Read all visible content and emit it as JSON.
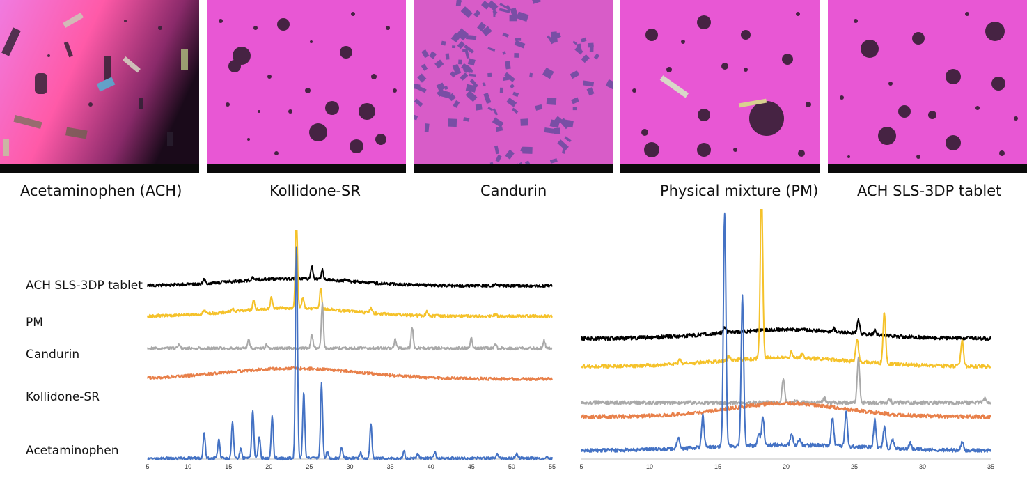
{
  "micrographs": [
    {
      "name": "Acetaminophen (ACH)"
    },
    {
      "name": "Kollidone-SR"
    },
    {
      "name": "Candurin"
    },
    {
      "name": "Physical mixture (PM)"
    },
    {
      "name": "ACH SLS-3DP tablet"
    }
  ],
  "colors": {
    "ach_tablet": "#000000",
    "pm": "#F5C22A",
    "candurin": "#A9A9A9",
    "kollidone": "#E8804A",
    "acetaminophen": "#4472C4",
    "micro_pink": "#E64FD0",
    "micro_bar": "#0a0a0a"
  },
  "chart_data": [
    {
      "type": "line",
      "title": "",
      "xlabel": "",
      "ylabel": "",
      "xlim": [
        5,
        55
      ],
      "xticks": [
        5,
        10,
        15,
        20,
        25,
        30,
        35,
        40,
        45,
        50,
        55
      ],
      "series": [
        {
          "name": "ACH SLS-3DP tablet",
          "color": "#000000",
          "baseline": 0.0,
          "hump": [
            23,
            10,
            0.6
          ],
          "peaks": [
            [
              12.0,
              0.35
            ],
            [
              18.0,
              0.2
            ],
            [
              23.4,
              0.3
            ],
            [
              25.3,
              1.1
            ],
            [
              26.6,
              0.8
            ],
            [
              29.5,
              0.15
            ],
            [
              48.0,
              0.2
            ]
          ]
        },
        {
          "name": "PM",
          "color": "#F5C22A",
          "baseline": 0.0,
          "hump": [
            23,
            10,
            0.7
          ],
          "peaks": [
            [
              12.0,
              0.3
            ],
            [
              15.5,
              0.3
            ],
            [
              18.1,
              0.8
            ],
            [
              20.3,
              0.9
            ],
            [
              23.4,
              7.5
            ],
            [
              24.2,
              0.9
            ],
            [
              26.4,
              1.8
            ],
            [
              32.6,
              0.4
            ],
            [
              39.5,
              0.4
            ],
            [
              48.0,
              0.2
            ]
          ]
        },
        {
          "name": "Candurin",
          "color": "#A9A9A9",
          "baseline": 0.0,
          "hump": [
            0,
            1,
            0
          ],
          "peaks": [
            [
              8.9,
              0.4
            ],
            [
              17.5,
              0.7
            ],
            [
              19.7,
              0.3
            ],
            [
              25.3,
              1.2
            ],
            [
              26.6,
              3.8
            ],
            [
              35.6,
              0.8
            ],
            [
              37.7,
              1.8
            ],
            [
              45.0,
              0.9
            ],
            [
              48.0,
              0.3
            ],
            [
              54.0,
              0.7
            ]
          ]
        },
        {
          "name": "Kollidone-SR",
          "color": "#E8804A",
          "baseline": 0.0,
          "hump": [
            23,
            12,
            0.9
          ],
          "peaks": []
        },
        {
          "name": "Acetaminophen",
          "color": "#4472C4",
          "baseline": 0.0,
          "hump": [
            0,
            1,
            0
          ],
          "peaks": [
            [
              12.0,
              2.1
            ],
            [
              13.8,
              1.7
            ],
            [
              15.5,
              3.1
            ],
            [
              16.5,
              0.8
            ],
            [
              18.0,
              4.0
            ],
            [
              18.8,
              1.9
            ],
            [
              20.4,
              3.6
            ],
            [
              23.4,
              18.0
            ],
            [
              24.3,
              5.5
            ],
            [
              26.5,
              6.3
            ],
            [
              27.2,
              0.6
            ],
            [
              29.0,
              1.0
            ],
            [
              31.3,
              0.5
            ],
            [
              32.6,
              3.0
            ],
            [
              36.7,
              0.6
            ],
            [
              38.4,
              0.4
            ],
            [
              40.5,
              0.5
            ],
            [
              48.2,
              0.4
            ],
            [
              50.6,
              0.4
            ]
          ]
        }
      ]
    },
    {
      "type": "line",
      "title": "",
      "xlabel": "",
      "ylabel": "",
      "xlim": [
        5,
        35
      ],
      "xticks": [
        5,
        10,
        15,
        20,
        25,
        30,
        35
      ],
      "series": [
        {
          "name": "ACH SLS-3DP tablet",
          "color": "#000000",
          "baseline": 0.0,
          "hump": [
            20,
            7,
            0.6
          ],
          "peaks": [
            [
              15.5,
              0.4
            ],
            [
              23.5,
              0.2
            ],
            [
              25.3,
              0.9
            ],
            [
              26.5,
              0.3
            ]
          ]
        },
        {
          "name": "PM",
          "color": "#F5C22A",
          "baseline": 0.0,
          "hump": [
            20,
            7,
            0.6
          ],
          "peaks": [
            [
              12.2,
              0.3
            ],
            [
              15.8,
              0.3
            ],
            [
              18.2,
              11.5
            ],
            [
              20.4,
              0.4
            ],
            [
              21.2,
              0.3
            ],
            [
              25.2,
              1.6
            ],
            [
              27.2,
              3.5
            ],
            [
              32.9,
              1.8
            ]
          ]
        },
        {
          "name": "Candurin",
          "color": "#A9A9A9",
          "baseline": 0.0,
          "hump": [
            0,
            1,
            0
          ],
          "peaks": [
            [
              19.8,
              1.7
            ],
            [
              20.7,
              0.2
            ],
            [
              22.8,
              0.3
            ],
            [
              25.3,
              3.0
            ],
            [
              27.6,
              0.2
            ],
            [
              34.6,
              0.3
            ]
          ]
        },
        {
          "name": "Kollidone-SR",
          "color": "#E8804A",
          "baseline": 0.0,
          "hump": [
            20,
            6,
            0.9
          ],
          "peaks": []
        },
        {
          "name": "Acetaminophen",
          "color": "#4472C4",
          "baseline": 0.0,
          "hump": [
            20,
            8,
            0.4
          ],
          "peaks": [
            [
              12.1,
              0.8
            ],
            [
              13.9,
              2.2
            ],
            [
              15.5,
              16.0
            ],
            [
              16.8,
              10.3
            ],
            [
              18.0,
              0.8
            ],
            [
              18.3,
              1.9
            ],
            [
              20.4,
              0.8
            ],
            [
              21.0,
              0.4
            ],
            [
              23.4,
              1.9
            ],
            [
              24.4,
              2.3
            ],
            [
              26.5,
              1.9
            ],
            [
              27.2,
              1.4
            ],
            [
              27.8,
              0.6
            ],
            [
              29.1,
              0.4
            ],
            [
              32.9,
              0.6
            ]
          ]
        }
      ]
    }
  ],
  "trace_labels": [
    "ACH SLS-3DP tablet",
    "PM",
    "Candurin",
    "Kollidone-SR",
    "Acetaminophen"
  ]
}
